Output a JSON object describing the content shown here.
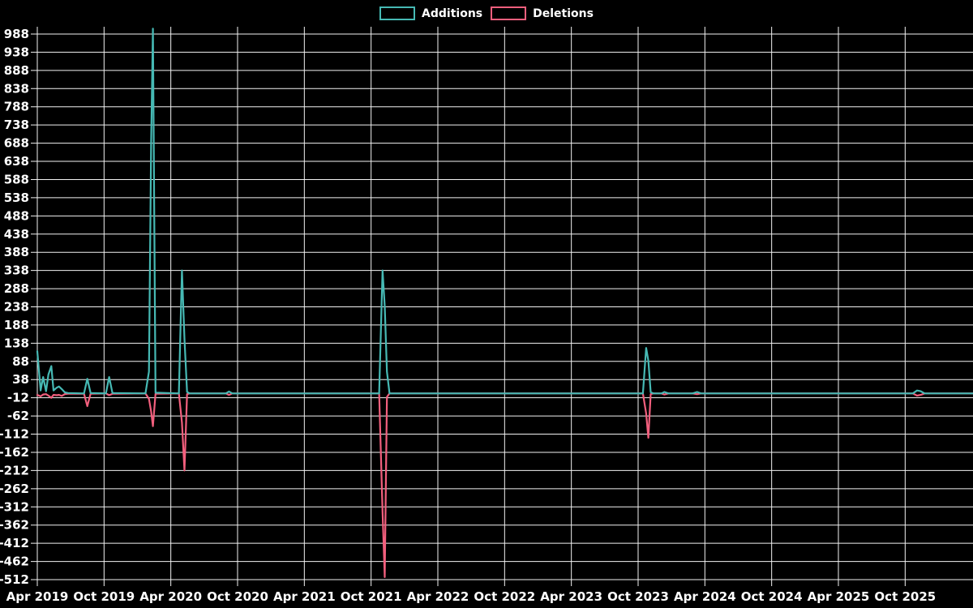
{
  "legend": {
    "items": [
      {
        "label": "Additions",
        "color": "#46b9b4"
      },
      {
        "label": "Deletions",
        "color": "#f25f7d"
      }
    ]
  },
  "colors": {
    "background": "#000000",
    "grid": "#f2f2f2",
    "text": "#ffffff",
    "additions": "#46b9b4",
    "deletions": "#f25f7d"
  },
  "chart_data": {
    "type": "line",
    "title": "",
    "legend_position": "top",
    "grid": true,
    "y_axis": {
      "min": -512,
      "max": 988,
      "tick_step": 50,
      "tick_labels": [
        988,
        938,
        888,
        838,
        788,
        738,
        688,
        638,
        588,
        538,
        488,
        438,
        388,
        338,
        288,
        238,
        188,
        138,
        88,
        38,
        -12,
        -62,
        -112,
        -162,
        -212,
        -262,
        -312,
        -362,
        -412,
        -462,
        -512
      ]
    },
    "x_axis": {
      "start": "2019-04-01",
      "end": "2026-04-03",
      "months_per_tick": 6,
      "tick_labels": [
        "Apr 2019",
        "Oct 2019",
        "Apr 2020",
        "Oct 2020",
        "Apr 2021",
        "Oct 2021",
        "Apr 2022",
        "Oct 2022",
        "Apr 2023",
        "Oct 2023",
        "Apr 2024",
        "Oct 2024",
        "Apr 2025",
        "Oct 2025"
      ]
    },
    "columns": [
      "date",
      "additions",
      "deletions"
    ],
    "points": [
      [
        "2019-04-01",
        116,
        -4
      ],
      [
        "2019-04-10",
        8,
        -8
      ],
      [
        "2019-04-17",
        45,
        -3
      ],
      [
        "2019-04-25",
        6,
        -2
      ],
      [
        "2019-05-01",
        52,
        -6
      ],
      [
        "2019-05-09",
        75,
        -12
      ],
      [
        "2019-05-15",
        8,
        -4
      ],
      [
        "2019-05-24",
        16,
        -5
      ],
      [
        "2019-05-30",
        19,
        -4
      ],
      [
        "2019-06-07",
        12,
        -7
      ],
      [
        "2019-06-15",
        3,
        -2
      ],
      [
        "2019-06-24",
        1,
        -1
      ],
      [
        "2019-08-07",
        0,
        -1
      ],
      [
        "2019-08-16",
        40,
        -35
      ],
      [
        "2019-08-25",
        1,
        -1
      ],
      [
        "2019-10-06",
        0,
        0
      ],
      [
        "2019-10-15",
        45,
        -5
      ],
      [
        "2019-10-24",
        1,
        -1
      ],
      [
        "2020-01-23",
        0,
        0
      ],
      [
        "2020-02-02",
        60,
        -15
      ],
      [
        "2020-02-08",
        690,
        -50
      ],
      [
        "2020-02-13",
        1003,
        -90
      ],
      [
        "2020-02-20",
        2,
        -1
      ],
      [
        "2020-04-23",
        0,
        0
      ],
      [
        "2020-05-01",
        338,
        -80
      ],
      [
        "2020-05-08",
        150,
        -212
      ],
      [
        "2020-05-15",
        4,
        -2
      ],
      [
        "2020-05-22",
        0,
        0
      ],
      [
        "2020-08-30",
        0,
        0
      ],
      [
        "2020-09-08",
        5,
        -4
      ],
      [
        "2020-09-17",
        0,
        0
      ],
      [
        "2021-10-23",
        0,
        0
      ],
      [
        "2021-11-02",
        338,
        -326
      ],
      [
        "2021-11-08",
        240,
        -505
      ],
      [
        "2021-11-14",
        60,
        -10
      ],
      [
        "2021-11-21",
        0,
        0
      ],
      [
        "2023-10-14",
        0,
        0
      ],
      [
        "2023-10-23",
        125,
        -55
      ],
      [
        "2023-10-29",
        90,
        -122
      ],
      [
        "2023-11-05",
        3,
        -2
      ],
      [
        "2023-11-12",
        0,
        0
      ],
      [
        "2023-12-04",
        0,
        0
      ],
      [
        "2023-12-12",
        4,
        -3
      ],
      [
        "2023-12-23",
        0,
        0
      ],
      [
        "2024-02-28",
        0,
        0
      ],
      [
        "2024-03-10",
        4,
        -2
      ],
      [
        "2024-03-21",
        0,
        0
      ],
      [
        "2025-10-22",
        0,
        0
      ],
      [
        "2025-11-03",
        8,
        -6
      ],
      [
        "2025-11-13",
        6,
        -4
      ],
      [
        "2025-11-24",
        0,
        0
      ],
      [
        "2026-04-03",
        0,
        0
      ]
    ],
    "series": [
      {
        "name": "Additions",
        "color": "#46b9b4"
      },
      {
        "name": "Deletions",
        "color": "#f25f7d"
      }
    ]
  }
}
